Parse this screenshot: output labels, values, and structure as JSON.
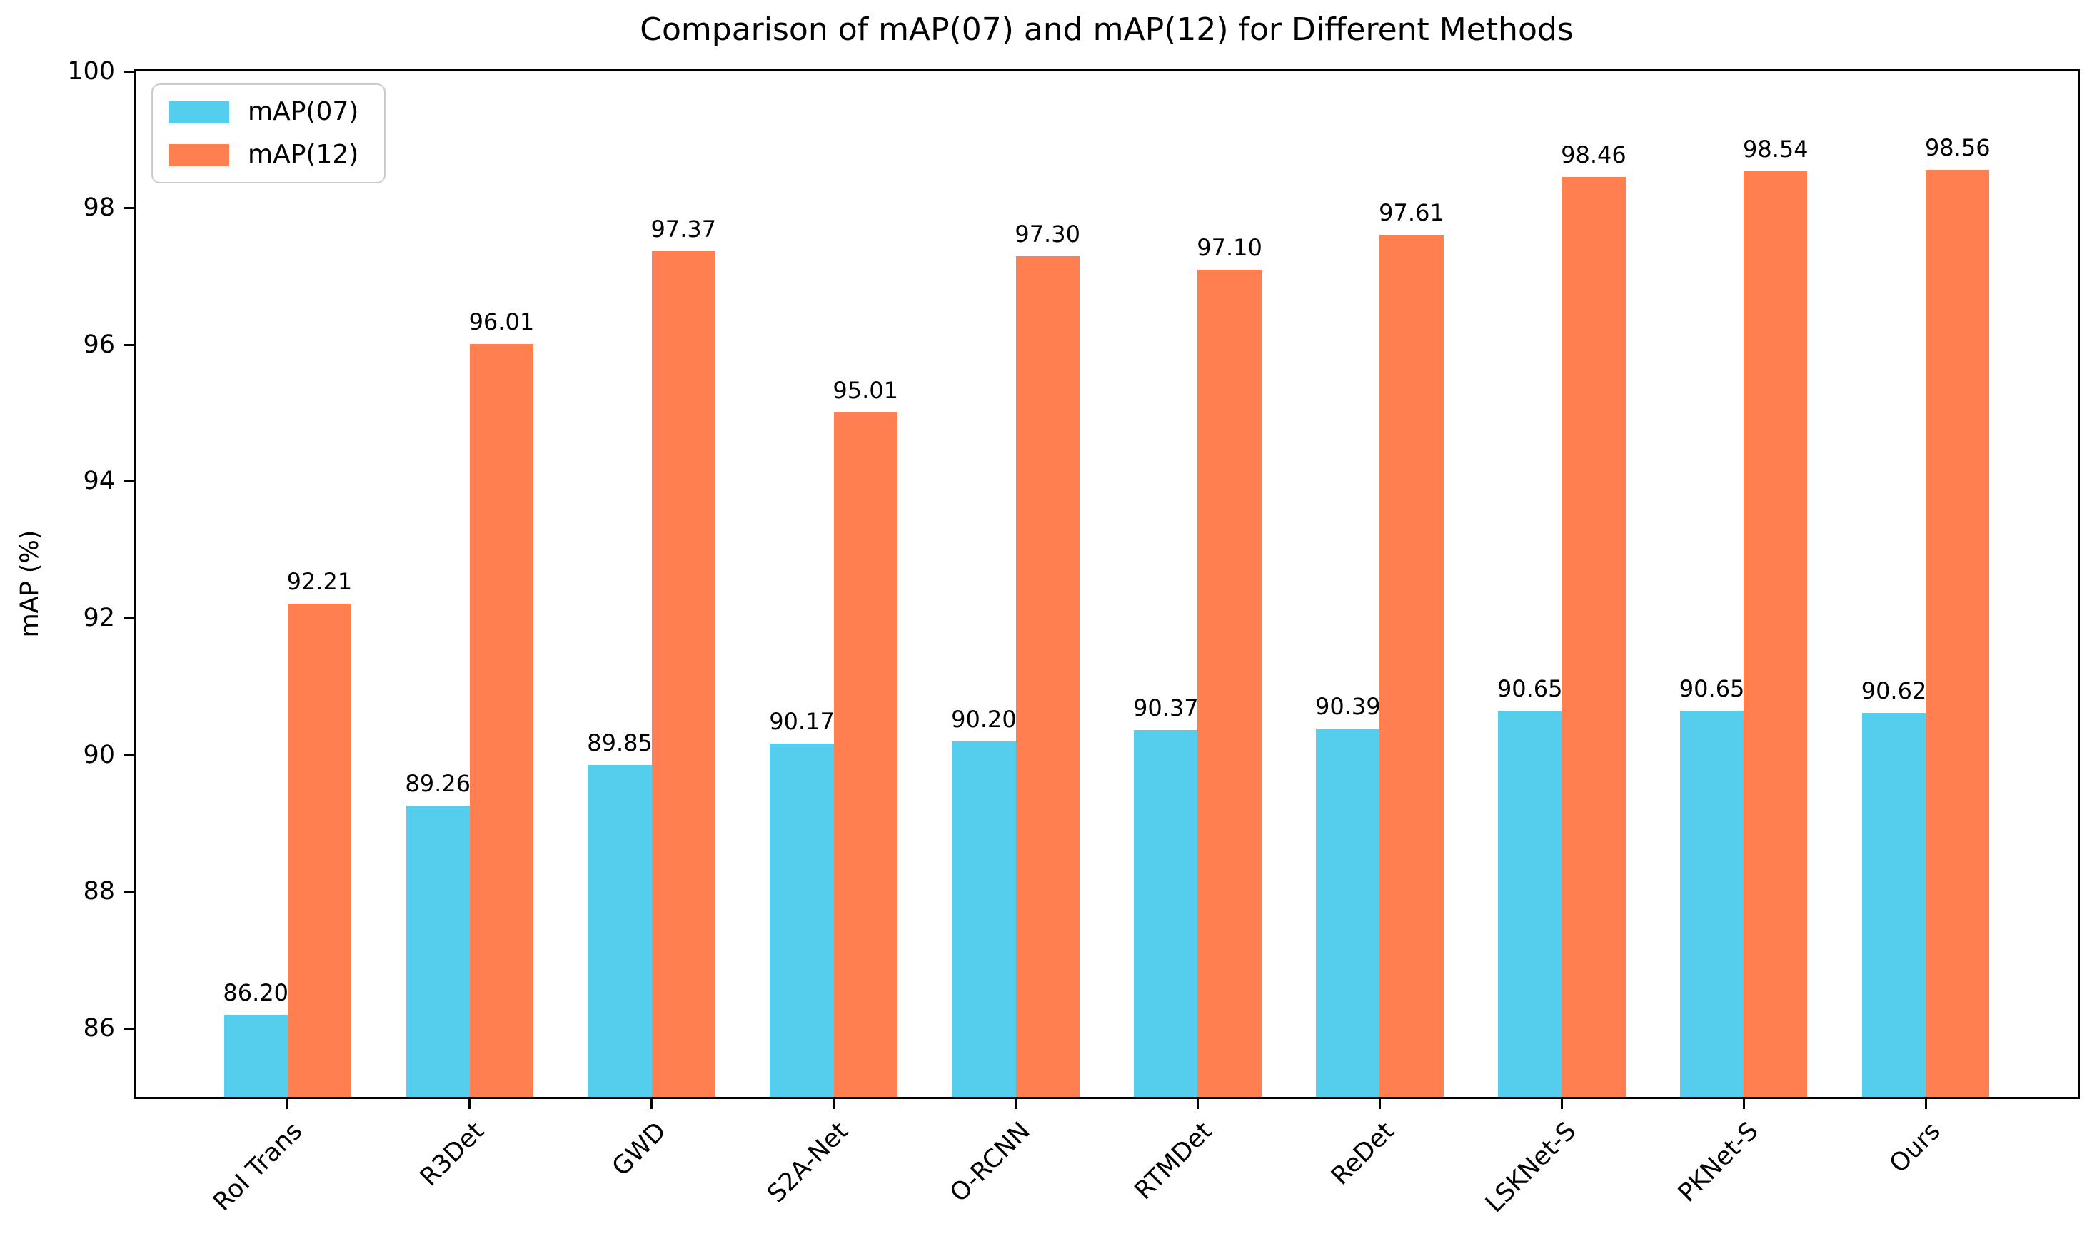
{
  "chart_data": {
    "type": "bar",
    "title": "Comparison of mAP(07) and mAP(12) for Different Methods",
    "xlabel": "",
    "ylabel": "mAP (%)",
    "categories": [
      "RoI Trans",
      "R3Det",
      "GWD",
      "S2A-Net",
      "O-RCNN",
      "RTMDet",
      "ReDet",
      "LSKNet-S",
      "PKNet-S",
      "Ours"
    ],
    "series": [
      {
        "name": "mAP(07)",
        "color": "#55CDEC",
        "values": [
          86.2,
          89.26,
          89.85,
          90.17,
          90.2,
          90.37,
          90.39,
          90.65,
          90.65,
          90.62
        ],
        "labels": [
          "86.20",
          "89.26",
          "89.85",
          "90.17",
          "90.20",
          "90.37",
          "90.39",
          "90.65",
          "90.65",
          "90.62"
        ]
      },
      {
        "name": "mAP(12)",
        "color": "#FF7F50",
        "values": [
          92.21,
          96.01,
          97.37,
          95.01,
          97.3,
          97.1,
          97.61,
          98.46,
          98.54,
          98.56
        ],
        "labels": [
          "92.21",
          "96.01",
          "97.37",
          "95.01",
          "97.30",
          "97.10",
          "97.61",
          "98.46",
          "98.54",
          "98.56"
        ]
      }
    ],
    "ylim": [
      85,
      100
    ],
    "yticks": [
      86,
      88,
      90,
      92,
      94,
      96,
      98,
      100
    ],
    "bar_width": 0.35,
    "grid": false,
    "legend_position": "upper left"
  }
}
